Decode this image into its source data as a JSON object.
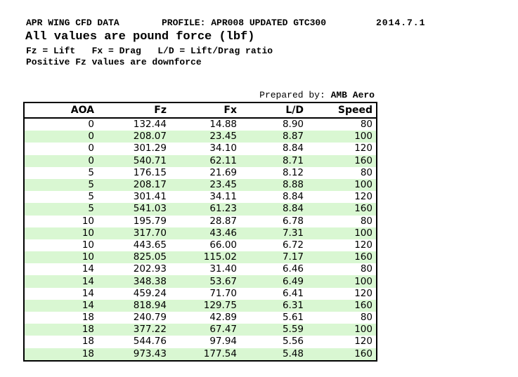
{
  "header": {
    "title": "APR WING CFD DATA",
    "profile": "PROFILE: APR008 UPDATED GTC300",
    "date": "2014.7.1",
    "subtitle": "All values are pound force (lbf)",
    "legend": "Fz = Lift   Fx = Drag   L/D = Lift/Drag ratio",
    "note": "Positive Fz values are downforce"
  },
  "prepared_by": {
    "label": "Prepared by: ",
    "value": "AMB Aero"
  },
  "table": {
    "columns": [
      "AOA",
      "Fz",
      "Fx",
      "L/D",
      "Speed"
    ],
    "rows": [
      [
        "0",
        "132.44",
        "14.88",
        "8.90",
        "80"
      ],
      [
        "0",
        "208.07",
        "23.45",
        "8.87",
        "100"
      ],
      [
        "0",
        "301.29",
        "34.10",
        "8.84",
        "120"
      ],
      [
        "0",
        "540.71",
        "62.11",
        "8.71",
        "160"
      ],
      [
        "5",
        "176.15",
        "21.69",
        "8.12",
        "80"
      ],
      [
        "5",
        "208.17",
        "23.45",
        "8.88",
        "100"
      ],
      [
        "5",
        "301.41",
        "34.11",
        "8.84",
        "120"
      ],
      [
        "5",
        "541.03",
        "61.23",
        "8.84",
        "160"
      ],
      [
        "10",
        "195.79",
        "28.87",
        "6.78",
        "80"
      ],
      [
        "10",
        "317.70",
        "43.46",
        "7.31",
        "100"
      ],
      [
        "10",
        "443.65",
        "66.00",
        "6.72",
        "120"
      ],
      [
        "10",
        "825.05",
        "115.02",
        "7.17",
        "160"
      ],
      [
        "14",
        "202.93",
        "31.40",
        "6.46",
        "80"
      ],
      [
        "14",
        "348.38",
        "53.67",
        "6.49",
        "100"
      ],
      [
        "14",
        "459.24",
        "71.70",
        "6.41",
        "120"
      ],
      [
        "14",
        "818.94",
        "129.75",
        "6.31",
        "160"
      ],
      [
        "18",
        "240.79",
        "42.89",
        "5.61",
        "80"
      ],
      [
        "18",
        "377.22",
        "67.47",
        "5.59",
        "100"
      ],
      [
        "18",
        "544.76",
        "97.94",
        "5.56",
        "120"
      ],
      [
        "18",
        "973.43",
        "177.54",
        "5.48",
        "160"
      ]
    ]
  },
  "colors": {
    "row_alt_green": "#d9f7d2",
    "border": "#000000",
    "text": "#000000",
    "background": "#ffffff"
  }
}
